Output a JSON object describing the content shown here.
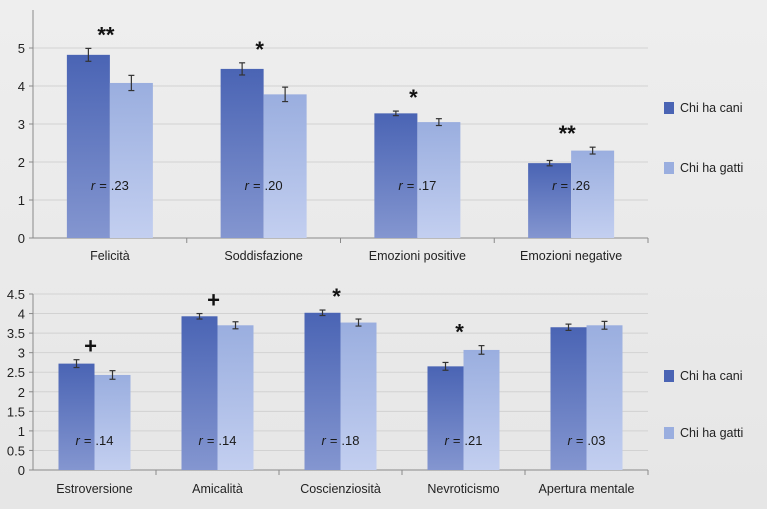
{
  "colors": {
    "dog": "#4a64b4",
    "dog_light": "#8496d0",
    "cat": "#9aaedf",
    "cat_light": "#c3cff0"
  },
  "chart_data": [
    {
      "type": "bar",
      "categories": [
        "Felicità",
        "Soddisfazione",
        "Emozioni positive",
        "Emozioni negative"
      ],
      "series": [
        {
          "name": "Chi ha cani",
          "values": [
            4.82,
            4.45,
            3.28,
            1.97
          ],
          "errors": [
            0.17,
            0.16,
            0.06,
            0.07
          ]
        },
        {
          "name": "Chi ha gatti",
          "values": [
            4.08,
            3.78,
            3.05,
            2.3
          ],
          "errors": [
            0.2,
            0.19,
            0.09,
            0.09
          ]
        }
      ],
      "significance": [
        "**",
        "*",
        "*",
        "**"
      ],
      "r_values": [
        ".23",
        ".20",
        ".17",
        ".26"
      ],
      "r_symbol": "r",
      "r_equals": "=",
      "ylim": [
        0,
        6
      ],
      "yticks": [
        "0",
        "1",
        "2",
        "3",
        "4",
        "5"
      ],
      "ytick_values": [
        0,
        1,
        2,
        3,
        4,
        5
      ],
      "grid": true,
      "legend": "right"
    },
    {
      "type": "bar",
      "categories": [
        "Estroversione",
        "Amicalità",
        "Coscienziosità",
        "Nevroticismo",
        "Apertura mentale"
      ],
      "series": [
        {
          "name": "Chi ha cani",
          "values": [
            2.72,
            3.93,
            4.02,
            2.65,
            3.65
          ],
          "errors": [
            0.1,
            0.07,
            0.07,
            0.1,
            0.08
          ]
        },
        {
          "name": "Chi ha gatti",
          "values": [
            2.43,
            3.7,
            3.77,
            3.07,
            3.7
          ],
          "errors": [
            0.11,
            0.09,
            0.09,
            0.11,
            0.1
          ]
        }
      ],
      "significance": [
        "+",
        "+",
        "*",
        "*",
        ""
      ],
      "r_values": [
        ".14",
        ".14",
        ".18",
        ".21",
        ".03"
      ],
      "r_symbol": "r",
      "r_equals": "=",
      "ylim": [
        0,
        4.5
      ],
      "yticks": [
        "0",
        "0.5",
        "1",
        "1.5",
        "2",
        "2.5",
        "3",
        "3.5",
        "4",
        "4.5"
      ],
      "ytick_values": [
        0,
        0.5,
        1,
        1.5,
        2,
        2.5,
        3,
        3.5,
        4,
        4.5
      ],
      "grid": true,
      "legend": "right"
    }
  ]
}
